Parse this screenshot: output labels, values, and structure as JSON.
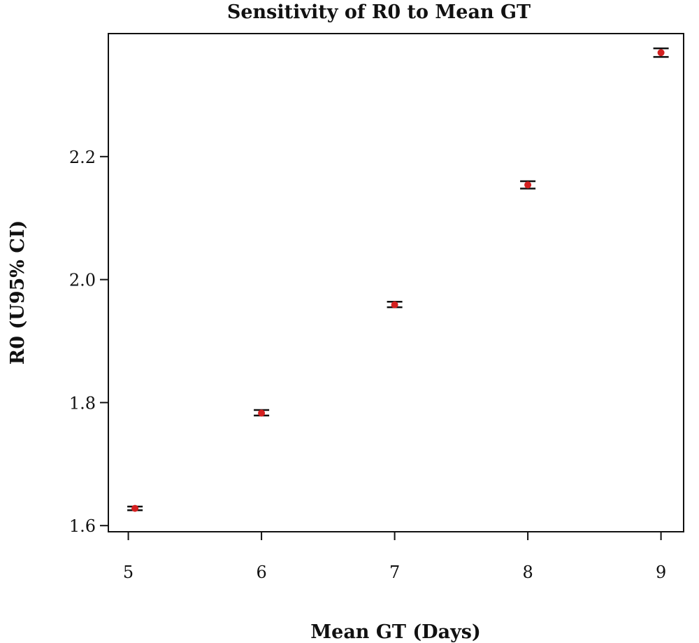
{
  "chart_data": {
    "type": "scatter",
    "title": "Sensitivity of R0 to Mean GT",
    "xlabel": "Mean GT (Days)",
    "ylabel": "R0 (U95% CI)",
    "x_ticks": [
      "5",
      "6",
      "7",
      "8",
      "9"
    ],
    "y_ticks": [
      "1.6",
      "1.8",
      "2.0",
      "2.2"
    ],
    "xlim": [
      4.85,
      9.17
    ],
    "ylim": [
      1.59,
      2.4
    ],
    "grid": false,
    "legend": "none",
    "point_color": "#d42020",
    "errorbar_color": "#111111",
    "points": [
      {
        "x": 5.05,
        "y": 1.628,
        "lower": 1.625,
        "upper": 1.631
      },
      {
        "x": 6.0,
        "y": 1.783,
        "lower": 1.779,
        "upper": 1.788
      },
      {
        "x": 7.0,
        "y": 1.959,
        "lower": 1.955,
        "upper": 1.964
      },
      {
        "x": 8.0,
        "y": 2.154,
        "lower": 2.148,
        "upper": 2.16
      },
      {
        "x": 9.0,
        "y": 2.369,
        "lower": 2.362,
        "upper": 2.376
      }
    ]
  }
}
